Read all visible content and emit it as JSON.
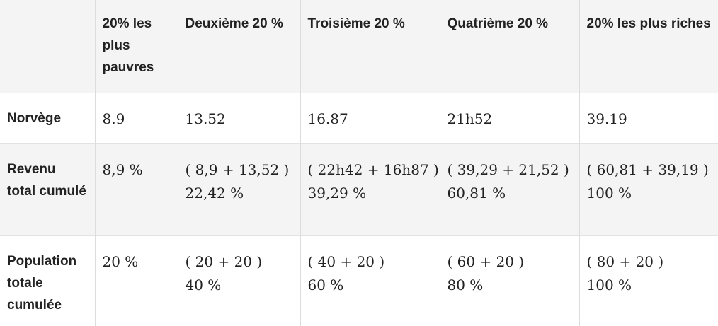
{
  "header": {
    "corner": "",
    "columns": [
      "20% les plus pauvres",
      "Deuxième 20 %",
      "Troisième 20 %",
      "Quatrième 20 %",
      "20% les plus riches"
    ]
  },
  "rows": [
    {
      "label": "Norvège",
      "cells": [
        [
          "8.9"
        ],
        [
          "13.52"
        ],
        [
          "16.87"
        ],
        [
          "21h52"
        ],
        [
          "39.19"
        ]
      ]
    },
    {
      "label": "Revenu total cumulé",
      "cells": [
        [
          "8,9 %"
        ],
        [
          "( 8,9 + 13,52 )",
          "22,42 %"
        ],
        [
          "( 22h42 + 16h87 )",
          "39,29 %"
        ],
        [
          "( 39,29 + 21,52 )",
          "60,81 %"
        ],
        [
          "( 60,81 + 39,19 )",
          "100 %"
        ]
      ]
    },
    {
      "label": "Population totale cumulée",
      "cells": [
        [
          "20 %"
        ],
        [
          "( 20 + 20 )",
          "40 %"
        ],
        [
          "( 40 + 20 )",
          "60 %"
        ],
        [
          "( 60 + 20 )",
          "80 %"
        ],
        [
          "( 80 + 20 )",
          "100 %"
        ]
      ]
    }
  ]
}
